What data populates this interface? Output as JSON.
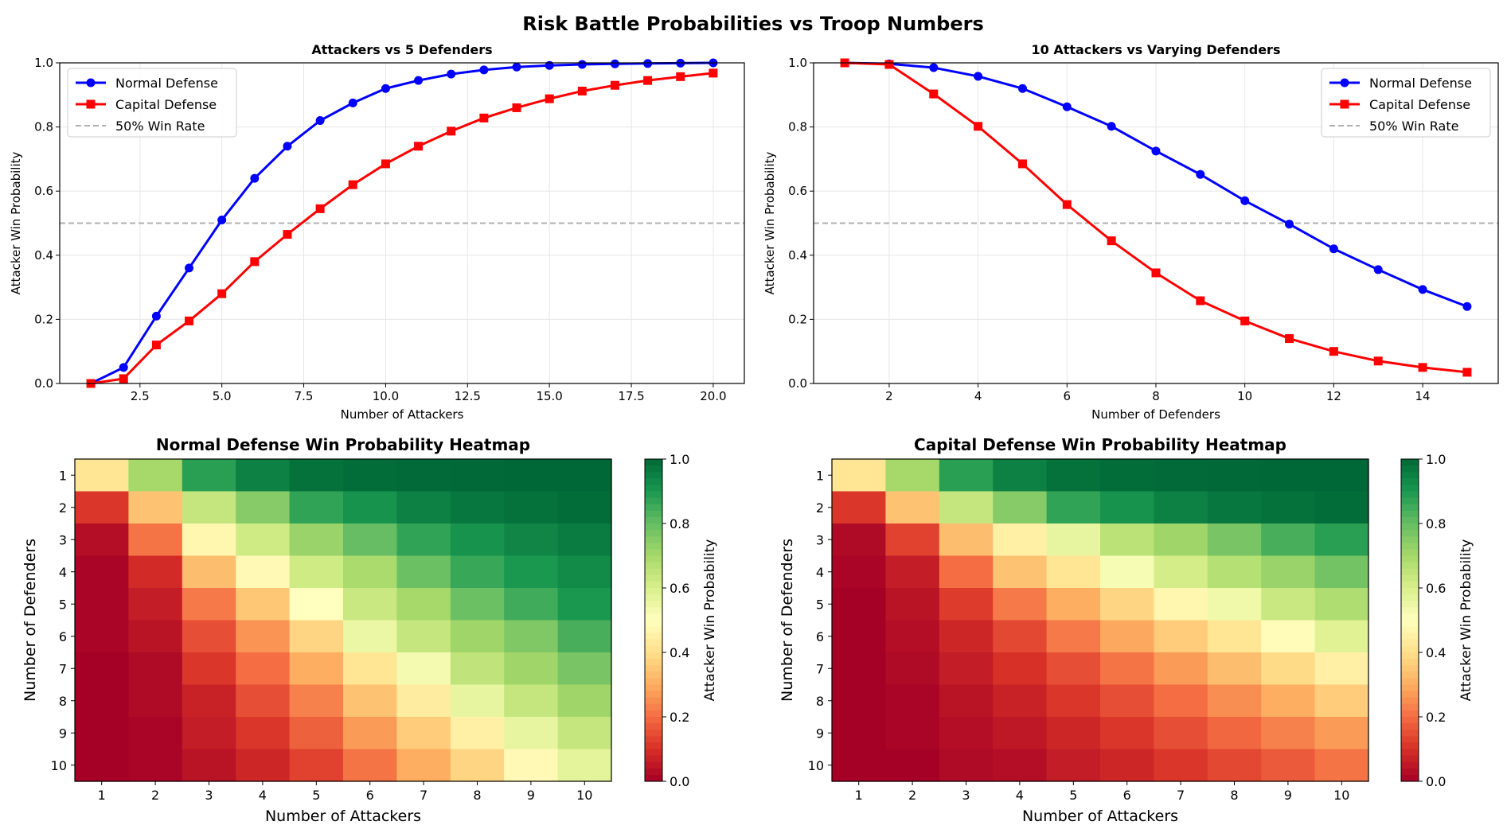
{
  "figure": {
    "title": "Risk Battle Probabilities vs Troop Numbers"
  },
  "colors": {
    "normal": "#0000ff",
    "capital": "#ff0000",
    "reference": "#b0b0b0",
    "grid": "#e6e6e6",
    "axis": "#000000"
  },
  "chart_data": [
    {
      "type": "line",
      "title": "Attackers vs 5 Defenders",
      "xlabel": "Number of Attackers",
      "ylabel": "Attacker Win Probability",
      "xlim": [
        0.05,
        20.95
      ],
      "ylim": [
        0,
        1
      ],
      "xticks": [
        2.5,
        5.0,
        7.5,
        10.0,
        12.5,
        15.0,
        17.5,
        20.0
      ],
      "xtick_labels": [
        "2.5",
        "5.0",
        "7.5",
        "10.0",
        "12.5",
        "15.0",
        "17.5",
        "20.0"
      ],
      "yticks": [
        0,
        0.2,
        0.4,
        0.6,
        0.8,
        1.0
      ],
      "ytick_labels": [
        "0.0",
        "0.2",
        "0.4",
        "0.6",
        "0.8",
        "1.0"
      ],
      "grid": true,
      "legend_position": "top-left",
      "x": [
        1,
        2,
        3,
        4,
        5,
        6,
        7,
        8,
        9,
        10,
        11,
        12,
        13,
        14,
        15,
        16,
        17,
        18,
        19,
        20
      ],
      "series": [
        {
          "name": "Normal Defense",
          "marker": "circle",
          "color_key": "normal",
          "values": [
            0.0,
            0.05,
            0.21,
            0.36,
            0.51,
            0.64,
            0.74,
            0.82,
            0.875,
            0.92,
            0.945,
            0.965,
            0.978,
            0.987,
            0.992,
            0.995,
            0.997,
            0.998,
            0.999,
            1.0
          ]
        },
        {
          "name": "Capital Defense",
          "marker": "square",
          "color_key": "capital",
          "values": [
            0.0,
            0.015,
            0.12,
            0.195,
            0.28,
            0.38,
            0.465,
            0.545,
            0.62,
            0.685,
            0.74,
            0.787,
            0.828,
            0.86,
            0.888,
            0.912,
            0.93,
            0.945,
            0.957,
            0.968
          ]
        }
      ],
      "reference_line": {
        "name": "50% Win Rate",
        "value": 0.5,
        "style": "dashed"
      }
    },
    {
      "type": "line",
      "title": "10 Attackers vs Varying Defenders",
      "xlabel": "Number of Defenders",
      "ylabel": "Attacker Win Probability",
      "xlim": [
        0.3,
        15.7
      ],
      "ylim": [
        0,
        1
      ],
      "xticks": [
        2,
        4,
        6,
        8,
        10,
        12,
        14
      ],
      "xtick_labels": [
        "2",
        "4",
        "6",
        "8",
        "10",
        "12",
        "14"
      ],
      "yticks": [
        0,
        0.2,
        0.4,
        0.6,
        0.8,
        1.0
      ],
      "ytick_labels": [
        "0.0",
        "0.2",
        "0.4",
        "0.6",
        "0.8",
        "1.0"
      ],
      "grid": true,
      "legend_position": "top-right",
      "x": [
        1,
        2,
        3,
        4,
        5,
        6,
        7,
        8,
        9,
        10,
        11,
        12,
        13,
        14,
        15
      ],
      "series": [
        {
          "name": "Normal Defense",
          "marker": "circle",
          "color_key": "normal",
          "values": [
            1.0,
            0.997,
            0.985,
            0.958,
            0.92,
            0.863,
            0.802,
            0.725,
            0.652,
            0.57,
            0.497,
            0.42,
            0.355,
            0.293,
            0.24
          ]
        },
        {
          "name": "Capital Defense",
          "marker": "square",
          "color_key": "capital",
          "values": [
            1.0,
            0.995,
            0.903,
            0.802,
            0.685,
            0.558,
            0.445,
            0.345,
            0.258,
            0.195,
            0.14,
            0.1,
            0.07,
            0.05,
            0.035
          ]
        }
      ],
      "reference_line": {
        "name": "50% Win Rate",
        "value": 0.5,
        "style": "dashed"
      }
    },
    {
      "type": "heatmap",
      "title": "Normal Defense Win Probability Heatmap",
      "xlabel": "Number of Attackers",
      "ylabel": "Number of Defenders",
      "x_categories": [
        "1",
        "2",
        "3",
        "4",
        "5",
        "6",
        "7",
        "8",
        "9",
        "10"
      ],
      "y_categories": [
        "1",
        "2",
        "3",
        "4",
        "5",
        "6",
        "7",
        "8",
        "9",
        "10"
      ],
      "colormap": "RdYlGn",
      "vmin": 0,
      "vmax": 1,
      "colorbar_label": "Attacker Win Probability",
      "colorbar_ticks": [
        0,
        0.2,
        0.4,
        0.6,
        0.8,
        1.0
      ],
      "colorbar_tick_labels": [
        "0.0",
        "0.2",
        "0.4",
        "0.6",
        "0.8",
        "1.0"
      ],
      "values": [
        [
          0.42,
          0.7,
          0.88,
          0.95,
          0.98,
          0.99,
          0.995,
          0.998,
          0.999,
          1.0
        ],
        [
          0.11,
          0.34,
          0.64,
          0.75,
          0.87,
          0.91,
          0.95,
          0.97,
          0.98,
          0.99
        ],
        [
          0.03,
          0.21,
          0.47,
          0.62,
          0.72,
          0.8,
          0.87,
          0.91,
          0.94,
          0.96
        ],
        [
          0.01,
          0.09,
          0.33,
          0.48,
          0.62,
          0.69,
          0.79,
          0.86,
          0.9,
          0.93
        ],
        [
          0.01,
          0.06,
          0.22,
          0.35,
          0.5,
          0.63,
          0.7,
          0.79,
          0.85,
          0.9
        ],
        [
          0.01,
          0.04,
          0.15,
          0.26,
          0.38,
          0.55,
          0.64,
          0.71,
          0.76,
          0.84
        ],
        [
          0.0,
          0.02,
          0.11,
          0.2,
          0.3,
          0.42,
          0.53,
          0.65,
          0.71,
          0.77
        ],
        [
          0.0,
          0.02,
          0.07,
          0.15,
          0.23,
          0.34,
          0.44,
          0.56,
          0.64,
          0.71
        ],
        [
          0.0,
          0.01,
          0.06,
          0.11,
          0.18,
          0.27,
          0.36,
          0.45,
          0.56,
          0.64
        ],
        [
          0.0,
          0.01,
          0.04,
          0.08,
          0.13,
          0.21,
          0.3,
          0.38,
          0.48,
          0.57
        ]
      ]
    },
    {
      "type": "heatmap",
      "title": "Capital Defense Win Probability Heatmap",
      "xlabel": "Number of Attackers",
      "ylabel": "Number of Defenders",
      "x_categories": [
        "1",
        "2",
        "3",
        "4",
        "5",
        "6",
        "7",
        "8",
        "9",
        "10"
      ],
      "y_categories": [
        "1",
        "2",
        "3",
        "4",
        "5",
        "6",
        "7",
        "8",
        "9",
        "10"
      ],
      "colormap": "RdYlGn",
      "vmin": 0,
      "vmax": 1,
      "colorbar_label": "Attacker Win Probability",
      "colorbar_ticks": [
        0,
        0.2,
        0.4,
        0.6,
        0.8,
        1.0
      ],
      "colorbar_tick_labels": [
        "0.0",
        "0.2",
        "0.4",
        "0.6",
        "0.8",
        "1.0"
      ],
      "values": [
        [
          0.42,
          0.7,
          0.88,
          0.95,
          0.98,
          0.99,
          0.995,
          0.998,
          0.999,
          1.0
        ],
        [
          0.11,
          0.34,
          0.64,
          0.75,
          0.87,
          0.91,
          0.95,
          0.97,
          0.98,
          0.99
        ],
        [
          0.02,
          0.13,
          0.33,
          0.45,
          0.56,
          0.66,
          0.71,
          0.77,
          0.84,
          0.88
        ],
        [
          0.01,
          0.06,
          0.2,
          0.34,
          0.42,
          0.52,
          0.61,
          0.67,
          0.72,
          0.78
        ],
        [
          0.0,
          0.04,
          0.12,
          0.22,
          0.3,
          0.38,
          0.47,
          0.54,
          0.63,
          0.68
        ],
        [
          0.0,
          0.03,
          0.08,
          0.14,
          0.22,
          0.29,
          0.36,
          0.42,
          0.49,
          0.58
        ],
        [
          0.0,
          0.02,
          0.06,
          0.1,
          0.15,
          0.21,
          0.27,
          0.33,
          0.39,
          0.45
        ],
        [
          0.0,
          0.01,
          0.04,
          0.07,
          0.11,
          0.15,
          0.2,
          0.25,
          0.3,
          0.36
        ],
        [
          0.0,
          0.01,
          0.03,
          0.05,
          0.08,
          0.11,
          0.15,
          0.19,
          0.23,
          0.27
        ],
        [
          0.0,
          0.0,
          0.02,
          0.03,
          0.06,
          0.08,
          0.11,
          0.14,
          0.17,
          0.21
        ]
      ]
    }
  ]
}
